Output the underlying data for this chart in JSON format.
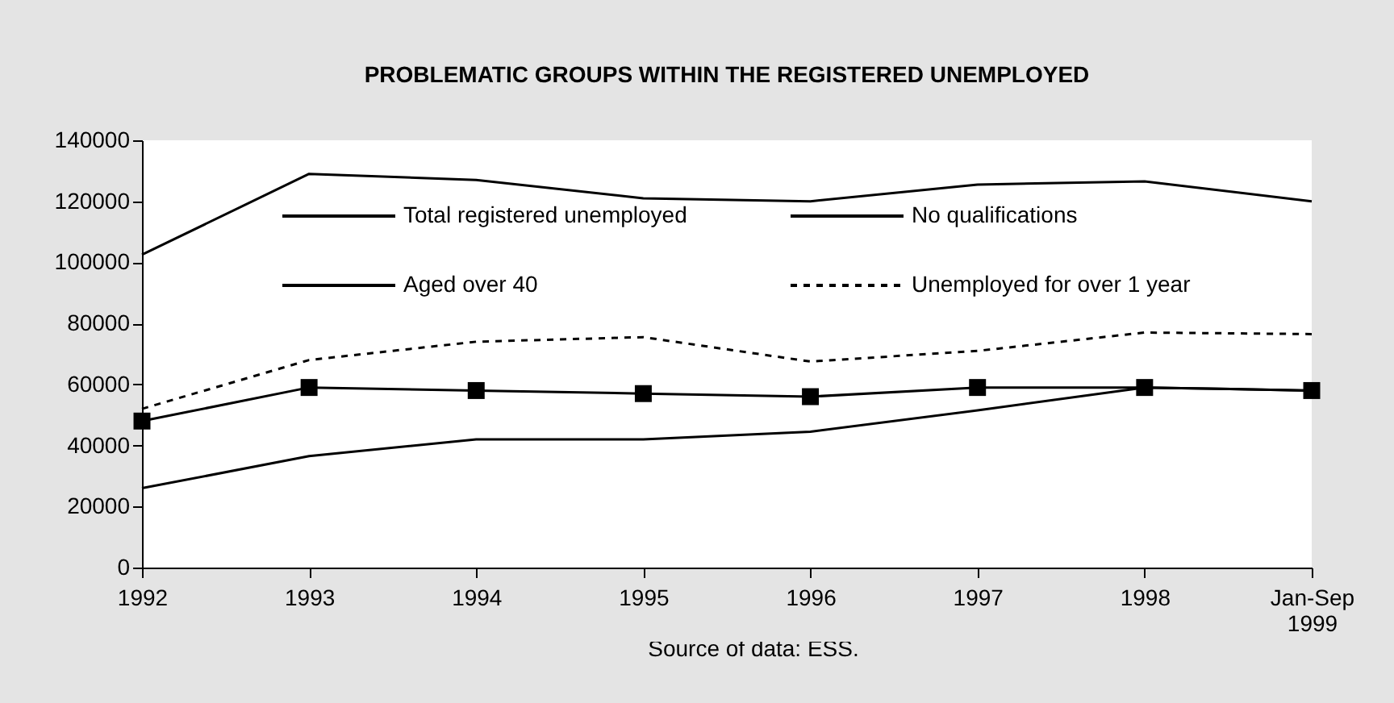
{
  "chart_data": {
    "type": "line",
    "title": "PROBLEMATIC GROUPS WITHIN THE REGISTERED UNEMPLOYED",
    "categories": [
      "1992",
      "1993",
      "1994",
      "1995",
      "1996",
      "1997",
      "1998",
      "Jan-Sep 1999"
    ],
    "series": [
      {
        "name": "Total registered unemployed",
        "color": "#000000",
        "line_style": "solid",
        "marker": "none",
        "values": [
          102500,
          129000,
          127000,
          121000,
          120000,
          125500,
          126500,
          120000
        ]
      },
      {
        "name": "No qualifications",
        "color": "#000000",
        "line_style": "solid",
        "marker": "square",
        "values": [
          48000,
          59000,
          58000,
          57000,
          56000,
          59000,
          59000,
          58000
        ]
      },
      {
        "name": "Aged over 40",
        "color": "#000000",
        "line_style": "solid",
        "marker": "none",
        "values": [
          26000,
          36500,
          42000,
          42000,
          44500,
          51500,
          59000,
          58000
        ]
      },
      {
        "name": "Unemployed for over 1 year",
        "color": "#000000",
        "line_style": "dashed",
        "marker": "none",
        "values": [
          52000,
          68000,
          74000,
          75500,
          67500,
          71000,
          77000,
          76500
        ]
      }
    ],
    "ylim": [
      0,
      140000
    ],
    "yticks": [
      0,
      20000,
      40000,
      60000,
      80000,
      100000,
      120000,
      140000
    ],
    "grid": false,
    "legend": "top",
    "annotations": [
      "Source of data: ESS."
    ]
  }
}
